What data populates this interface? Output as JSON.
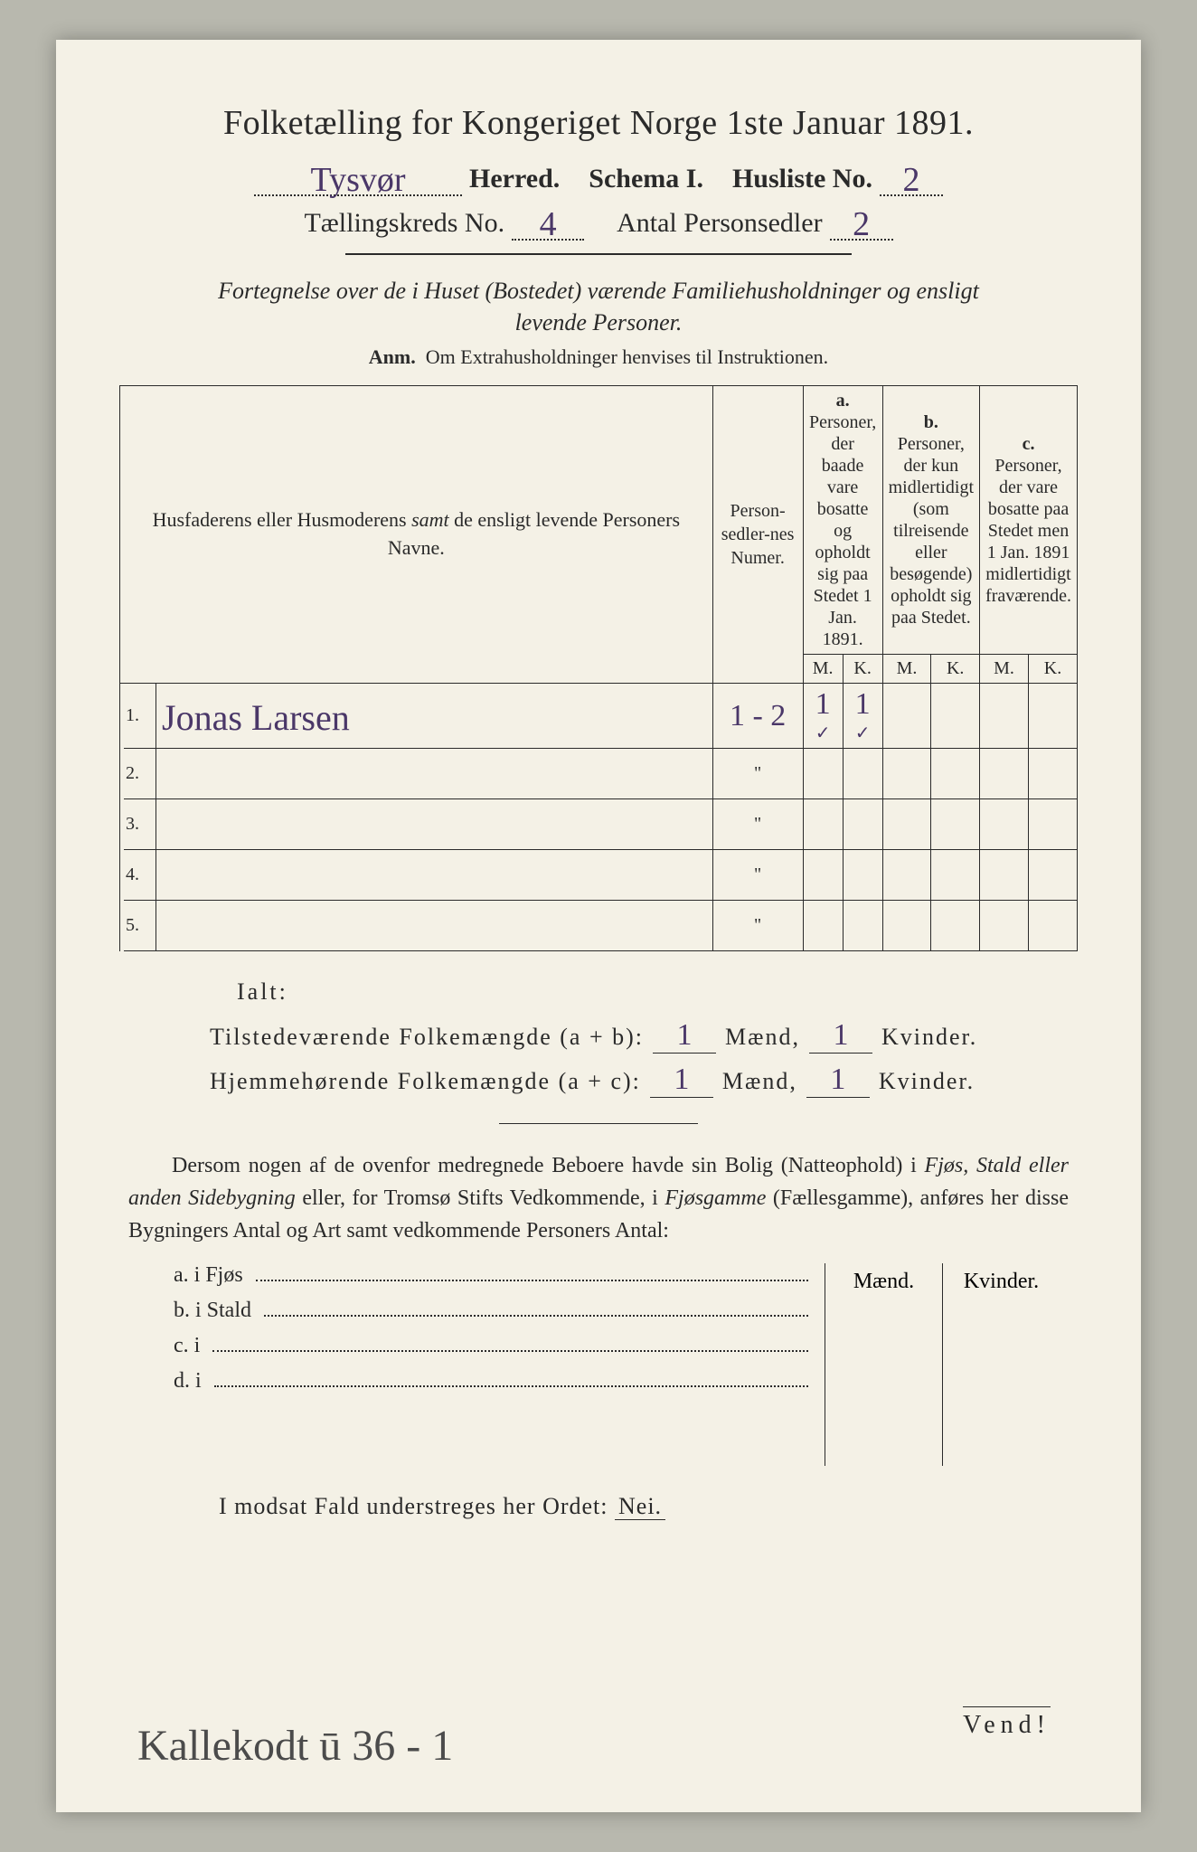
{
  "title": "Folketælling for Kongeriget Norge 1ste Januar 1891.",
  "header": {
    "herred_value": "Tysvør",
    "herred_label": "Herred.",
    "schema_label": "Schema I.",
    "husliste_label": "Husliste No.",
    "husliste_no": "2",
    "kreds_label": "Tællingskreds No.",
    "kreds_no": "4",
    "sedler_label": "Antal Personsedler",
    "sedler_no": "2"
  },
  "intro_line1": "Fortegnelse over de i Huset (Bostedet) værende Familiehusholdninger og ensligt",
  "intro_line2": "levende Personer.",
  "anm_bold": "Anm.",
  "anm_rest": "Om Extrahusholdninger henvises til Instruktionen.",
  "table": {
    "col_name": "Husfaderens eller Husmoderens samt de ensligt levende Personers Navne.",
    "col_numer": "Person-sedler-nes Numer.",
    "group_a_label": "a.",
    "group_a_text": "Personer, der baade vare bosatte og opholdt sig paa Stedet 1 Jan. 1891.",
    "group_b_label": "b.",
    "group_b_text": "Personer, der kun midlertidigt (som tilreisende eller besøgende) opholdt sig paa Stedet.",
    "group_c_label": "c.",
    "group_c_text": "Personer, der vare bosatte paa Stedet men 1 Jan. 1891 midlertidigt fraværende.",
    "m": "M.",
    "k": "K.",
    "rows": [
      {
        "n": "1.",
        "name": "Jonas Larsen",
        "numer": "1 - 2",
        "am": "1",
        "ak": "1",
        "tick": true
      },
      {
        "n": "2.",
        "name": "",
        "numer": "\"",
        "am": "",
        "ak": ""
      },
      {
        "n": "3.",
        "name": "",
        "numer": "\"",
        "am": "",
        "ak": ""
      },
      {
        "n": "4.",
        "name": "",
        "numer": "\"",
        "am": "",
        "ak": ""
      },
      {
        "n": "5.",
        "name": "",
        "numer": "\"",
        "am": "",
        "ak": ""
      }
    ]
  },
  "totals": {
    "ialt": "Ialt:",
    "line1_label": "Tilstedeværende Folkemængde (a + b):",
    "line2_label": "Hjemmehørende Folkemængde (a + c):",
    "maend": "Mænd,",
    "kvinder": "Kvinder.",
    "l1_m": "1",
    "l1_k": "1",
    "l2_m": "1",
    "l2_k": "1"
  },
  "para": "Dersom nogen af de ovenfor medregnede Beboere havde sin Bolig (Natteophold) i Fjøs, Stald eller anden Sidebygning eller, for Tromsø Stifts Vedkommende, i Fjøsgamme (Fællesgamme), anføres her disse Bygningers Antal og Art samt vedkommende Personers Antal:",
  "sidebldg": {
    "a": "a.   i     Fjøs",
    "b": "b.   i     Stald",
    "c": "c.   i",
    "d": "d.   i",
    "maend": "Mænd.",
    "kvinder": "Kvinder."
  },
  "nei_prefix": "I modsat Fald understreges her Ordet:",
  "nei_word": "Nei.",
  "vend": "Vend!",
  "bottom_note": "Kallekodt  ū 36 - 1",
  "colors": {
    "paper": "#f4f1e6",
    "ink": "#2a2a2a",
    "handwriting": "#4a3768",
    "pencil": "#4b4b4b",
    "backdrop": "#b8b8ae"
  }
}
